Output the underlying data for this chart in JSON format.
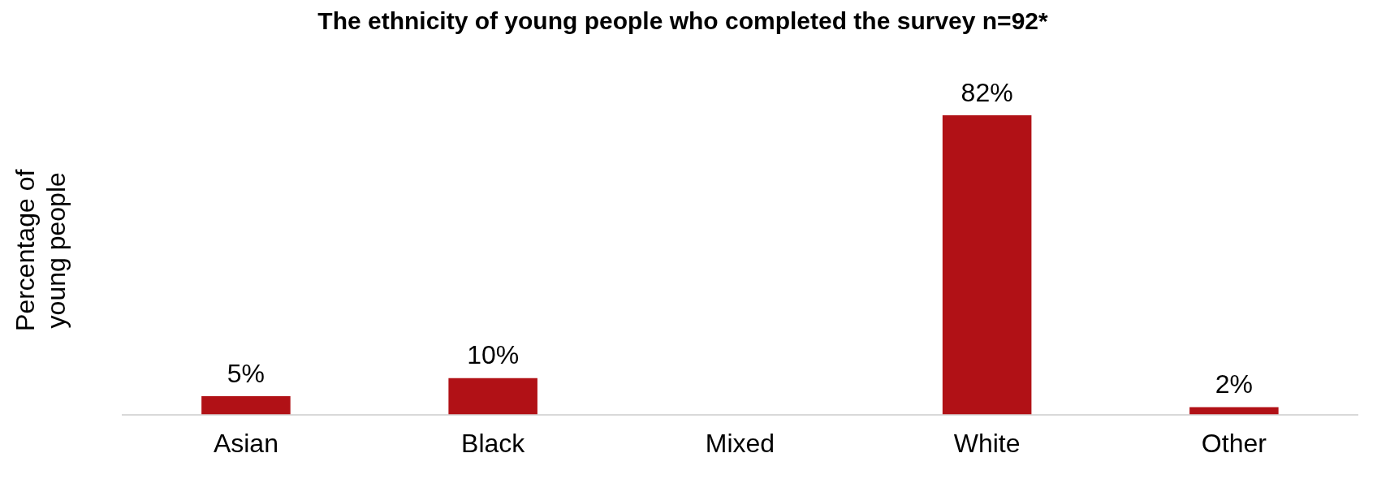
{
  "chart_data": {
    "type": "bar",
    "title": "The ethnicity of young people who completed the survey n=92*",
    "ylabel": "Percentage of young people",
    "categories": [
      "Asian",
      "Black",
      "Mixed",
      "White",
      "Other"
    ],
    "values": [
      5,
      10,
      null,
      82,
      2
    ],
    "value_labels": [
      "5%",
      "10%",
      null,
      "82%",
      "2%"
    ],
    "color": "#b11116",
    "grid": false,
    "legend": false
  }
}
